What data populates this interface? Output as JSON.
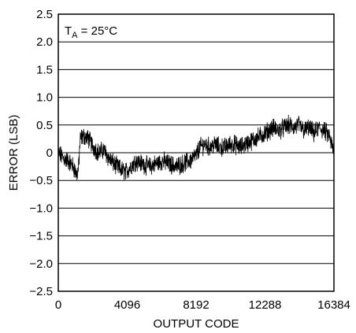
{
  "chart_data": {
    "type": "line",
    "title": "",
    "xlabel": "OUTPUT CODE",
    "ylabel": "ERROR (LSB)",
    "xlim": [
      0,
      16384
    ],
    "ylim": [
      -2.5,
      2.5
    ],
    "x_ticks": [
      0,
      4096,
      8192,
      12288,
      16384
    ],
    "x_tick_labels": [
      "0",
      "4096",
      "8192",
      "12288",
      "16384"
    ],
    "y_ticks": [
      2.5,
      2.0,
      1.5,
      1.0,
      0.5,
      0,
      -0.5,
      -1.0,
      -1.5,
      -2.0,
      -2.5
    ],
    "y_tick_labels": [
      "2.5",
      "2.0",
      "1.5",
      "1.0",
      "0.5",
      "0",
      "−0.5",
      "−1.0",
      "−1.5",
      "−2.0",
      "−2.5"
    ],
    "grid": "horizontal",
    "annotation": {
      "prefix": "T",
      "subscript": "A",
      "suffix": " = 25°C",
      "placement": "top-left"
    },
    "series": [
      {
        "color": "#000000",
        "x": [
          0,
          300,
          600,
          900,
          1100,
          1200,
          1300,
          1500,
          1800,
          2100,
          2400,
          2700,
          3000,
          3300,
          3500,
          3700,
          4000,
          4300,
          4600,
          5000,
          5400,
          5800,
          6200,
          6600,
          7000,
          7400,
          7800,
          8192,
          8400,
          8700,
          9000,
          9300,
          9600,
          9900,
          10200,
          10500,
          10800,
          11100,
          11400,
          11700,
          12000,
          12288,
          12500,
          12800,
          13100,
          13400,
          13700,
          14000,
          14300,
          14600,
          14900,
          15200,
          15500,
          15800,
          16100,
          16384
        ],
        "values": [
          0.0,
          -0.1,
          -0.15,
          -0.25,
          -0.4,
          -0.3,
          0.25,
          0.3,
          0.25,
          0.1,
          0.0,
          0.05,
          -0.1,
          -0.2,
          -0.25,
          -0.3,
          -0.35,
          -0.25,
          -0.15,
          -0.2,
          -0.25,
          -0.2,
          -0.15,
          -0.2,
          -0.25,
          -0.2,
          -0.15,
          -0.05,
          0.1,
          0.15,
          0.1,
          0.15,
          0.1,
          0.1,
          0.15,
          0.15,
          0.1,
          0.15,
          0.2,
          0.25,
          0.3,
          0.35,
          0.4,
          0.45,
          0.4,
          0.45,
          0.5,
          0.45,
          0.5,
          0.4,
          0.45,
          0.35,
          0.45,
          0.4,
          0.3,
          0.0
        ]
      }
    ]
  }
}
